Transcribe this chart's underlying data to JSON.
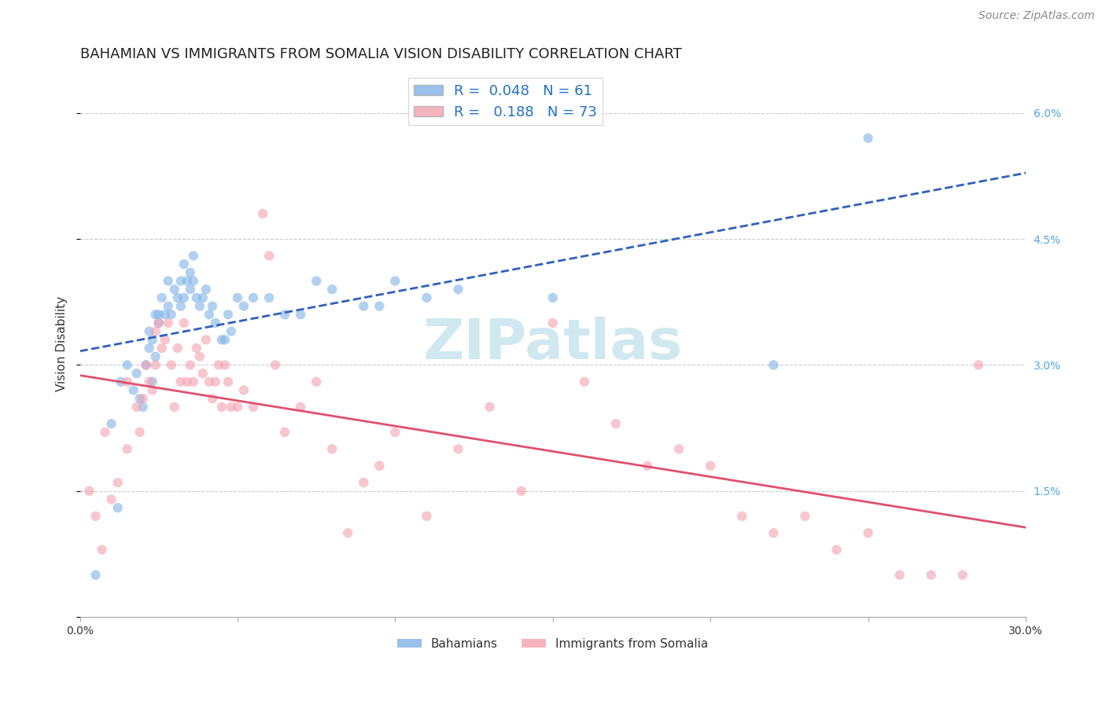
{
  "title": "BAHAMIAN VS IMMIGRANTS FROM SOMALIA VISION DISABILITY CORRELATION CHART",
  "source": "Source: ZipAtlas.com",
  "ylabel": "Vision Disability",
  "xlabel": "",
  "xlim": [
    0.0,
    0.3
  ],
  "ylim": [
    0.0,
    0.065
  ],
  "xticks": [
    0.0,
    0.05,
    0.1,
    0.15,
    0.2,
    0.25,
    0.3
  ],
  "xticklabels": [
    "0.0%",
    "",
    "",
    "",
    "",
    "",
    "30.0%"
  ],
  "yticks": [
    0.0,
    0.015,
    0.03,
    0.045,
    0.06
  ],
  "yticklabels": [
    "",
    "1.5%",
    "3.0%",
    "4.5%",
    "6.0%"
  ],
  "title_fontsize": 13,
  "source_fontsize": 10,
  "background_color": "#ffffff",
  "grid_color": "#cccccc",
  "watermark_text": "ZIPatlas",
  "watermark_color": "#d0e8f0",
  "legend_R1": "0.048",
  "legend_N1": "61",
  "legend_R2": "0.188",
  "legend_N2": "73",
  "legend_label1": "Bahamians",
  "legend_label2": "Immigrants from Somalia",
  "scatter_color1": "#7fb3e8",
  "scatter_color2": "#f4a0b0",
  "line_color1": "#3060c0",
  "line_color2": "#e05070",
  "scatter_alpha": 0.6,
  "marker_size": 80,
  "blue_x": [
    0.005,
    0.01,
    0.012,
    0.013,
    0.015,
    0.017,
    0.018,
    0.019,
    0.02,
    0.021,
    0.022,
    0.022,
    0.023,
    0.023,
    0.024,
    0.024,
    0.025,
    0.025,
    0.026,
    0.027,
    0.028,
    0.028,
    0.029,
    0.03,
    0.031,
    0.032,
    0.032,
    0.033,
    0.033,
    0.034,
    0.035,
    0.035,
    0.036,
    0.036,
    0.037,
    0.038,
    0.039,
    0.04,
    0.041,
    0.042,
    0.043,
    0.045,
    0.046,
    0.047,
    0.048,
    0.05,
    0.052,
    0.055,
    0.06,
    0.065,
    0.07,
    0.075,
    0.08,
    0.09,
    0.095,
    0.1,
    0.11,
    0.12,
    0.15,
    0.22,
    0.25
  ],
  "blue_y": [
    0.005,
    0.023,
    0.013,
    0.028,
    0.03,
    0.027,
    0.029,
    0.026,
    0.025,
    0.03,
    0.032,
    0.034,
    0.028,
    0.033,
    0.036,
    0.031,
    0.035,
    0.036,
    0.038,
    0.036,
    0.037,
    0.04,
    0.036,
    0.039,
    0.038,
    0.037,
    0.04,
    0.038,
    0.042,
    0.04,
    0.041,
    0.039,
    0.04,
    0.043,
    0.038,
    0.037,
    0.038,
    0.039,
    0.036,
    0.037,
    0.035,
    0.033,
    0.033,
    0.036,
    0.034,
    0.038,
    0.037,
    0.038,
    0.038,
    0.036,
    0.036,
    0.04,
    0.039,
    0.037,
    0.037,
    0.04,
    0.038,
    0.039,
    0.038,
    0.03,
    0.057
  ],
  "pink_x": [
    0.003,
    0.005,
    0.007,
    0.008,
    0.01,
    0.012,
    0.015,
    0.015,
    0.018,
    0.019,
    0.02,
    0.021,
    0.022,
    0.023,
    0.024,
    0.024,
    0.025,
    0.026,
    0.027,
    0.028,
    0.029,
    0.03,
    0.031,
    0.032,
    0.033,
    0.034,
    0.035,
    0.036,
    0.037,
    0.038,
    0.039,
    0.04,
    0.041,
    0.042,
    0.043,
    0.044,
    0.045,
    0.046,
    0.047,
    0.048,
    0.05,
    0.052,
    0.055,
    0.058,
    0.06,
    0.062,
    0.065,
    0.07,
    0.075,
    0.08,
    0.085,
    0.09,
    0.095,
    0.1,
    0.11,
    0.12,
    0.13,
    0.14,
    0.15,
    0.16,
    0.17,
    0.18,
    0.19,
    0.2,
    0.21,
    0.22,
    0.23,
    0.24,
    0.25,
    0.26,
    0.27,
    0.28,
    0.285
  ],
  "pink_y": [
    0.015,
    0.012,
    0.008,
    0.022,
    0.014,
    0.016,
    0.02,
    0.028,
    0.025,
    0.022,
    0.026,
    0.03,
    0.028,
    0.027,
    0.03,
    0.034,
    0.035,
    0.032,
    0.033,
    0.035,
    0.03,
    0.025,
    0.032,
    0.028,
    0.035,
    0.028,
    0.03,
    0.028,
    0.032,
    0.031,
    0.029,
    0.033,
    0.028,
    0.026,
    0.028,
    0.03,
    0.025,
    0.03,
    0.028,
    0.025,
    0.025,
    0.027,
    0.025,
    0.048,
    0.043,
    0.03,
    0.022,
    0.025,
    0.028,
    0.02,
    0.01,
    0.016,
    0.018,
    0.022,
    0.012,
    0.02,
    0.025,
    0.015,
    0.035,
    0.028,
    0.023,
    0.018,
    0.02,
    0.018,
    0.012,
    0.01,
    0.012,
    0.008,
    0.01,
    0.005,
    0.005,
    0.005,
    0.03
  ]
}
